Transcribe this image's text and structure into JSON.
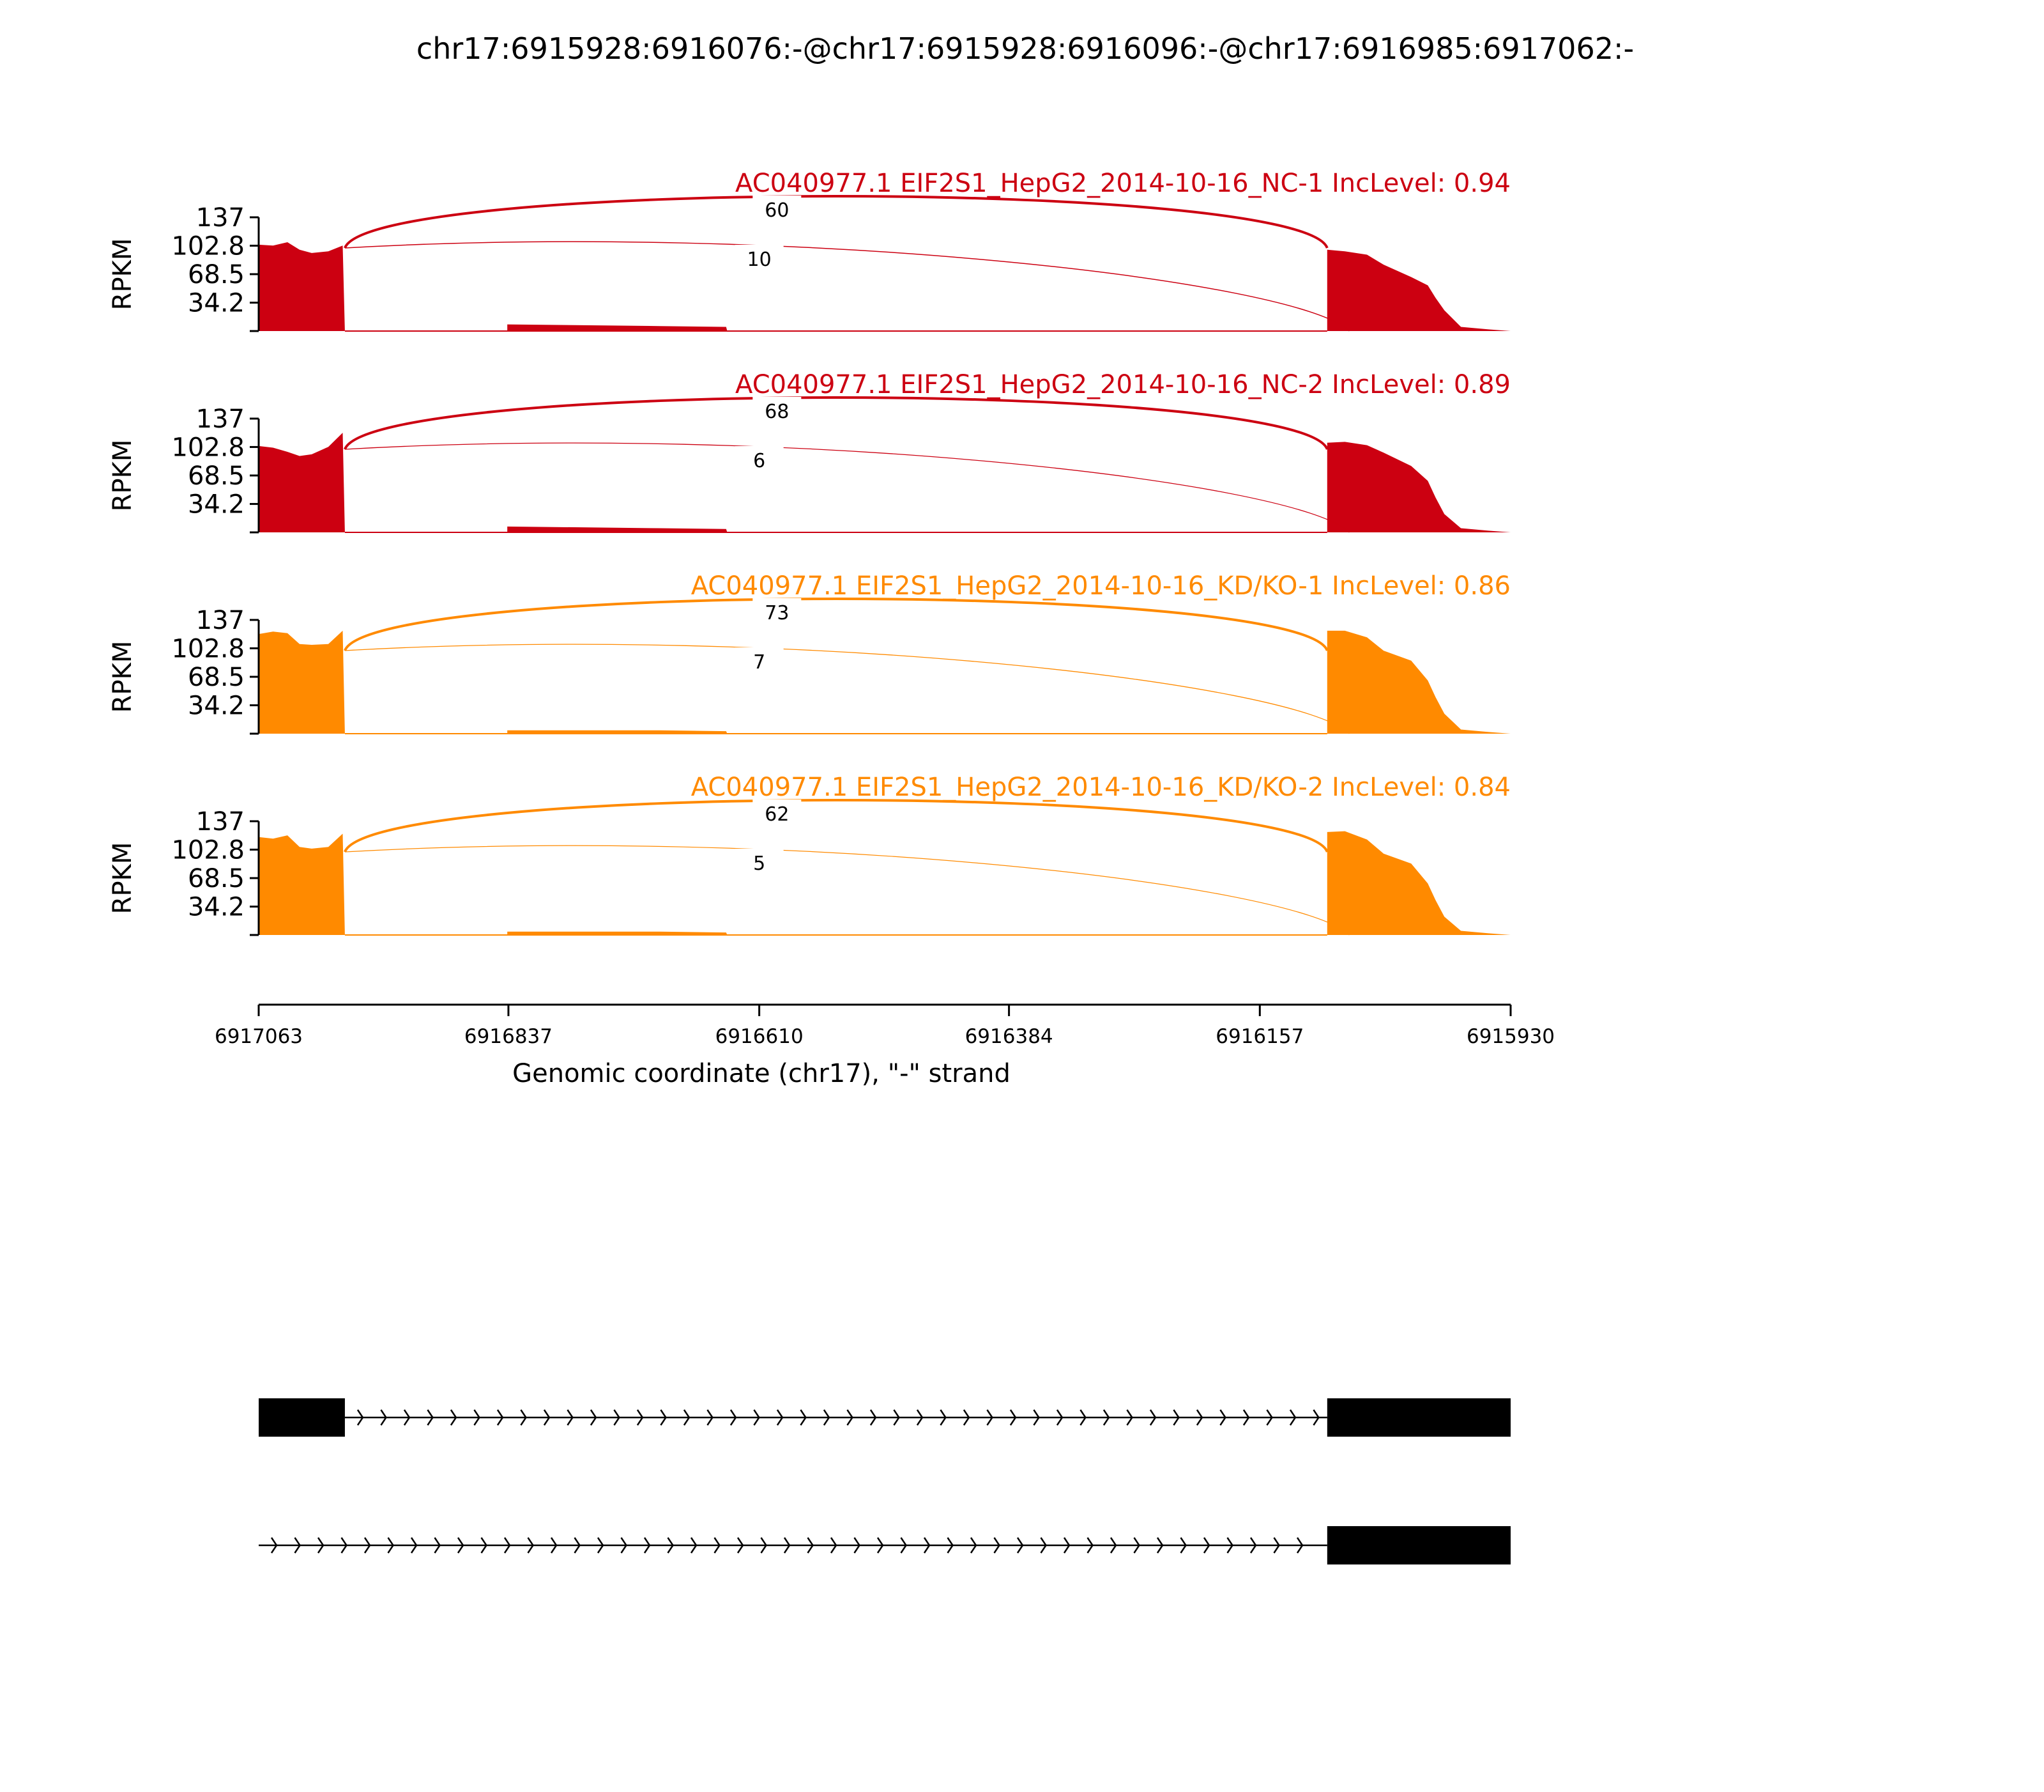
{
  "chart_data": {
    "type": "area",
    "title": "chr17:6915928:6916076:-@chr17:6915928:6916096:-@chr17:6916985:6917062:-",
    "xlabel": "Genomic coordinate (chr17), \"-\" strand",
    "ylabel": "RPKM",
    "x_ticks": [
      "6917063",
      "6916837",
      "6916610",
      "6916384",
      "6916157",
      "6915930"
    ],
    "xlim": [
      6917063,
      6915930
    ],
    "y_ticks": [
      "34.2",
      "68.5",
      "102.8",
      "137"
    ],
    "ylim": [
      0,
      137
    ],
    "tracks": [
      {
        "name": "AC040977.1 EIF2S1_HepG2_2014-10-16_NC-1 IncLevel: 0.94",
        "color": "#cc0011",
        "junctions": [
          {
            "label": "60",
            "start": 6916985,
            "end": 6916096
          },
          {
            "label": "10",
            "start": 6916985,
            "end": 6916076
          }
        ],
        "coverage": [
          [
            6917063,
            104
          ],
          [
            6917050,
            103
          ],
          [
            6917037,
            107
          ],
          [
            6917026,
            98
          ],
          [
            6917015,
            94
          ],
          [
            6917000,
            96
          ],
          [
            6916987,
            103
          ],
          [
            6916985,
            0
          ],
          [
            6916838,
            0
          ],
          [
            6916838,
            8
          ],
          [
            6916700,
            6
          ],
          [
            6916640,
            5
          ],
          [
            6916639,
            0
          ],
          [
            6916096,
            0
          ],
          [
            6916096,
            98
          ],
          [
            6916080,
            96
          ],
          [
            6916060,
            92
          ],
          [
            6916045,
            80
          ],
          [
            6916020,
            65
          ],
          [
            6916005,
            55
          ],
          [
            6915998,
            40
          ],
          [
            6915990,
            25
          ],
          [
            6915975,
            5
          ],
          [
            6915950,
            2
          ],
          [
            6915930,
            0
          ]
        ]
      },
      {
        "name": "AC040977.1 EIF2S1_HepG2_2014-10-16_NC-2 IncLevel: 0.89",
        "color": "#cc0011",
        "junctions": [
          {
            "label": "68",
            "start": 6916985,
            "end": 6916096
          },
          {
            "label": "6",
            "start": 6916985,
            "end": 6916076
          }
        ],
        "coverage": [
          [
            6917063,
            104
          ],
          [
            6917050,
            102
          ],
          [
            6917037,
            97
          ],
          [
            6917026,
            92
          ],
          [
            6917015,
            94
          ],
          [
            6917000,
            103
          ],
          [
            6916987,
            120
          ],
          [
            6916985,
            0
          ],
          [
            6916838,
            0
          ],
          [
            6916838,
            7
          ],
          [
            6916700,
            5
          ],
          [
            6916640,
            4
          ],
          [
            6916639,
            0
          ],
          [
            6916096,
            0
          ],
          [
            6916096,
            108
          ],
          [
            6916080,
            109
          ],
          [
            6916060,
            105
          ],
          [
            6916045,
            96
          ],
          [
            6916020,
            80
          ],
          [
            6916005,
            62
          ],
          [
            6915998,
            42
          ],
          [
            6915990,
            22
          ],
          [
            6915975,
            5
          ],
          [
            6915950,
            2
          ],
          [
            6915930,
            0
          ]
        ]
      },
      {
        "name": "AC040977.1 EIF2S1_HepG2_2014-10-16_KD/KO-1 IncLevel: 0.86",
        "color": "#ff8a00",
        "junctions": [
          {
            "label": "73",
            "start": 6916985,
            "end": 6916096
          },
          {
            "label": "7",
            "start": 6916985,
            "end": 6916076
          }
        ],
        "coverage": [
          [
            6917063,
            120
          ],
          [
            6917050,
            123
          ],
          [
            6917037,
            121
          ],
          [
            6917026,
            108
          ],
          [
            6917015,
            107
          ],
          [
            6917000,
            108
          ],
          [
            6916987,
            124
          ],
          [
            6916985,
            0
          ],
          [
            6916838,
            0
          ],
          [
            6916838,
            4
          ],
          [
            6916700,
            4
          ],
          [
            6916640,
            3
          ],
          [
            6916639,
            0
          ],
          [
            6916096,
            0
          ],
          [
            6916096,
            124
          ],
          [
            6916080,
            124
          ],
          [
            6916060,
            116
          ],
          [
            6916045,
            100
          ],
          [
            6916020,
            88
          ],
          [
            6916005,
            64
          ],
          [
            6915998,
            44
          ],
          [
            6915990,
            24
          ],
          [
            6915975,
            5
          ],
          [
            6915950,
            2
          ],
          [
            6915930,
            0
          ]
        ]
      },
      {
        "name": "AC040977.1 EIF2S1_HepG2_2014-10-16_KD/KO-2 IncLevel: 0.84",
        "color": "#ff8a00",
        "junctions": [
          {
            "label": "62",
            "start": 6916985,
            "end": 6916096
          },
          {
            "label": "5",
            "start": 6916985,
            "end": 6916076
          }
        ],
        "coverage": [
          [
            6917063,
            118
          ],
          [
            6917050,
            116
          ],
          [
            6917037,
            120
          ],
          [
            6917026,
            106
          ],
          [
            6917015,
            104
          ],
          [
            6917000,
            106
          ],
          [
            6916987,
            122
          ],
          [
            6916985,
            0
          ],
          [
            6916838,
            0
          ],
          [
            6916838,
            4
          ],
          [
            6916700,
            4
          ],
          [
            6916640,
            3
          ],
          [
            6916639,
            0
          ],
          [
            6916096,
            0
          ],
          [
            6916096,
            124
          ],
          [
            6916080,
            125
          ],
          [
            6916060,
            115
          ],
          [
            6916045,
            98
          ],
          [
            6916020,
            86
          ],
          [
            6916005,
            62
          ],
          [
            6915998,
            42
          ],
          [
            6915990,
            22
          ],
          [
            6915975,
            5
          ],
          [
            6915950,
            2
          ],
          [
            6915930,
            0
          ]
        ]
      }
    ],
    "isoforms": [
      {
        "exons": [
          [
            6917063,
            6916985
          ],
          [
            6916096,
            6915930
          ]
        ]
      },
      {
        "exons": [
          [
            6916096,
            6915930
          ]
        ]
      }
    ]
  }
}
